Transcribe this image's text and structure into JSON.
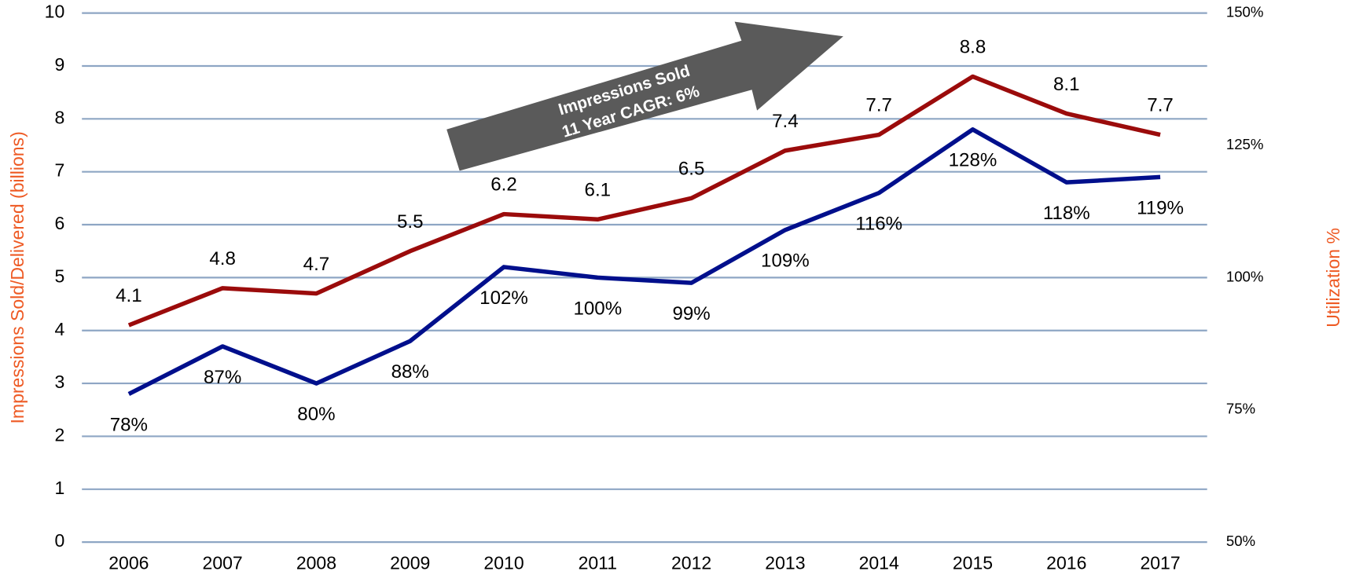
{
  "chart_data": {
    "type": "line",
    "y_label": "Impressions Sold/Delivered (billions)",
    "y2_label": "Utilization %",
    "annotation": [
      "Impressions Sold",
      "11 Year CAGR: 6%"
    ],
    "categories": [
      "2006",
      "2007",
      "2008",
      "2009",
      "2010",
      "2011",
      "2012",
      "2013",
      "2014",
      "2015",
      "2016",
      "2017"
    ],
    "series": [
      {
        "color": "#9b0b0b",
        "values": [
          4.1,
          4.8,
          4.7,
          5.5,
          6.2,
          6.1,
          6.5,
          7.4,
          7.7,
          8.8,
          8.1,
          7.7
        ]
      },
      {
        "color": "#000f8c",
        "axis": "y2",
        "values": [
          78,
          87,
          80,
          88,
          102,
          100,
          99,
          109,
          116,
          128,
          118,
          119
        ],
        "value_labels": [
          "78%",
          "87%",
          "80%",
          "88%",
          "102%",
          "100%",
          "99%",
          "109%",
          "116%",
          "128%",
          "118%",
          "119%"
        ]
      }
    ],
    "ylim": [
      0,
      10
    ],
    "yticks": [
      0,
      1,
      2,
      3,
      4,
      5,
      6,
      7,
      8,
      9,
      10
    ],
    "y2lim": [
      50,
      150
    ],
    "y2ticks": [
      {
        "value": 50,
        "label": "50%"
      },
      {
        "value": 75,
        "label": "75%"
      },
      {
        "value": 100,
        "label": "100%"
      },
      {
        "value": 125,
        "label": "125%"
      },
      {
        "value": 150,
        "label": "150%"
      }
    ],
    "grid": true
  }
}
